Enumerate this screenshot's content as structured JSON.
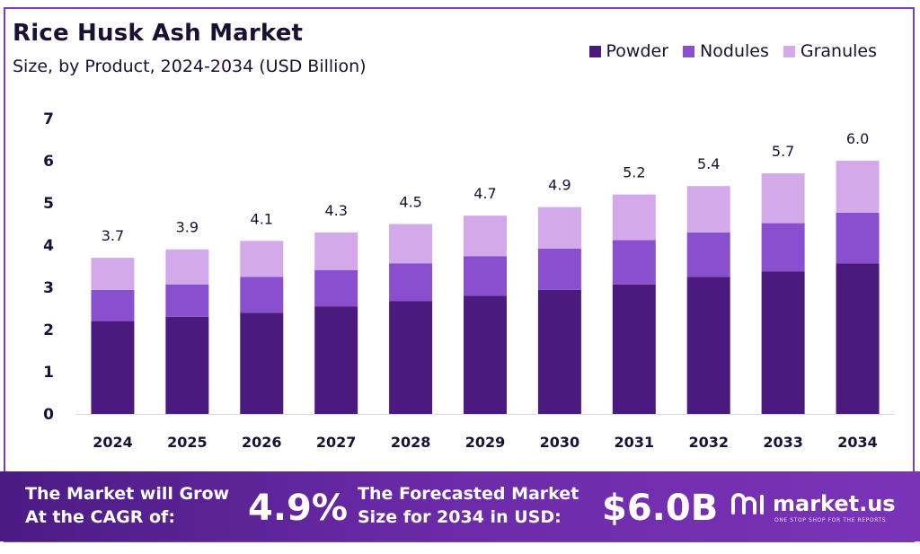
{
  "title": "Rice Husk Ash Market",
  "subtitle": "Size, by Product, 2024-2034 (USD Billion)",
  "colors": {
    "powder": "#4a1a7e",
    "nodules": "#8a4fcf",
    "granules": "#d3a9ea",
    "axis": "#1a1033"
  },
  "chart_data": {
    "type": "bar",
    "stacked": true,
    "categories": [
      "2024",
      "2025",
      "2026",
      "2027",
      "2028",
      "2029",
      "2030",
      "2031",
      "2032",
      "2033",
      "2034"
    ],
    "series": [
      {
        "name": "Powder",
        "values": [
          2.2,
          2.3,
          2.4,
          2.55,
          2.67,
          2.8,
          2.94,
          3.07,
          3.25,
          3.38,
          3.57
        ]
      },
      {
        "name": "Nodules",
        "values": [
          0.74,
          0.77,
          0.85,
          0.86,
          0.9,
          0.94,
          0.98,
          1.05,
          1.05,
          1.14,
          1.2
        ]
      },
      {
        "name": "Granules",
        "values": [
          0.76,
          0.83,
          0.85,
          0.89,
          0.93,
          0.96,
          0.98,
          1.08,
          1.1,
          1.18,
          1.23
        ]
      }
    ],
    "totals": [
      "3.7",
      "3.9",
      "4.1",
      "4.3",
      "4.5",
      "4.7",
      "4.9",
      "5.2",
      "5.4",
      "5.7",
      "6.0"
    ],
    "ylim": [
      0,
      7
    ],
    "yticks": [
      "0",
      "1",
      "2",
      "3",
      "4",
      "5",
      "6",
      "7"
    ],
    "legend_position": "top-right",
    "grid": false
  },
  "banner": {
    "cagr_label_line1": "The Market will Grow",
    "cagr_label_line2": "At the CAGR of:",
    "cagr_value": "4.9%",
    "forecast_label_line1": "The Forecasted Market",
    "forecast_label_line2": "Size for 2034 in USD:",
    "forecast_value": "$6.0B",
    "logo_text": "market.us",
    "logo_tagline": "ONE STOP SHOP FOR THE REPORTS"
  }
}
